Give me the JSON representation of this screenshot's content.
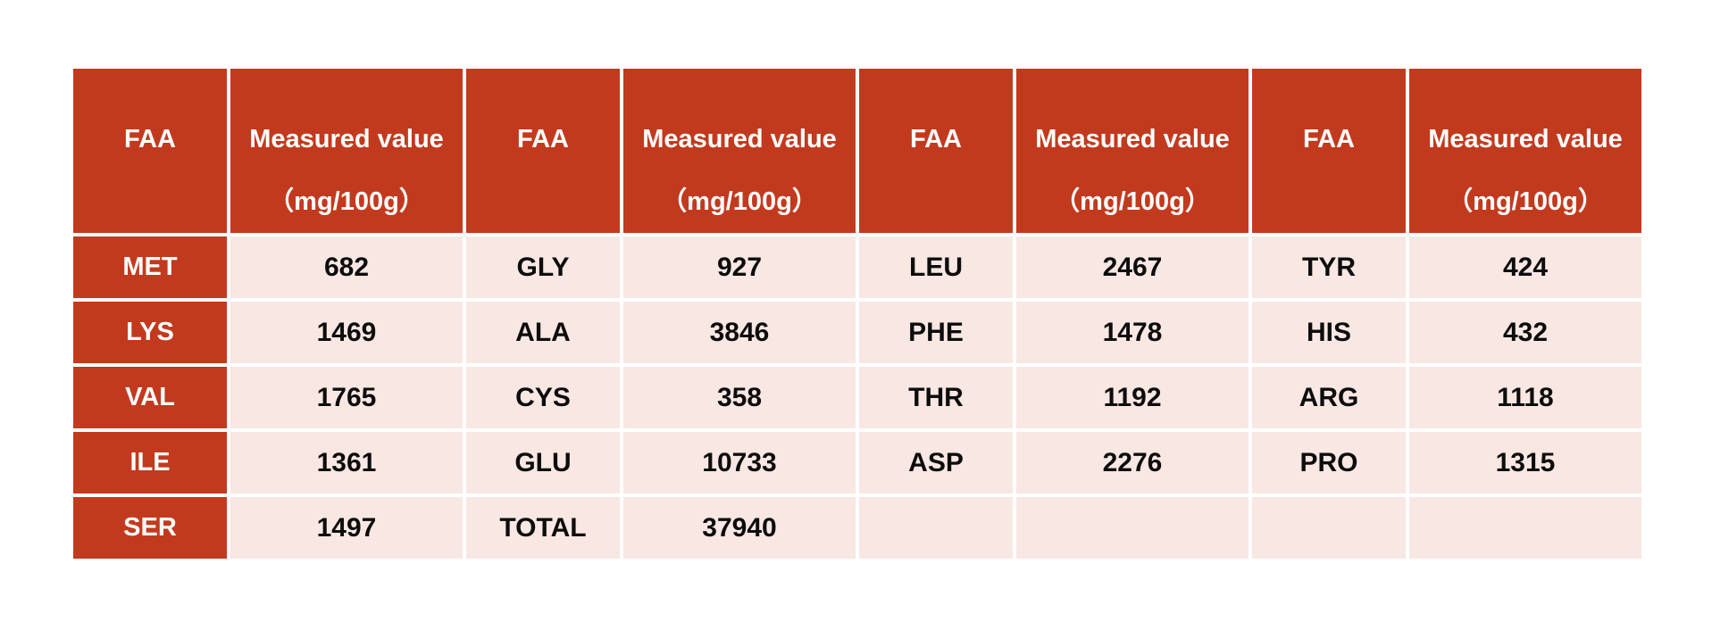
{
  "colors": {
    "header_red": "#C23A1E",
    "cell_pink": "#F8E7E3",
    "header_text": "#FFFFFF",
    "cell_text": "#0D0D0D",
    "page_background": "#FFFFFF"
  },
  "table": {
    "header": {
      "faa_label": "FAA",
      "value_label": "Measured value",
      "unit_label": "（mg/100g）"
    },
    "rows": [
      {
        "cells": [
          "MET",
          "682",
          "GLY",
          "927",
          "LEU",
          "2467",
          "TYR",
          "424"
        ]
      },
      {
        "cells": [
          "LYS",
          "1469",
          "ALA",
          "3846",
          "PHE",
          "1478",
          "HIS",
          "432"
        ]
      },
      {
        "cells": [
          "VAL",
          "1765",
          "CYS",
          "358",
          "THR",
          "1192",
          "ARG",
          "1118"
        ]
      },
      {
        "cells": [
          "ILE",
          "1361",
          "GLU",
          "10733",
          "ASP",
          "2276",
          "PRO",
          "1315"
        ]
      },
      {
        "cells": [
          "SER",
          "1497",
          "TOTAL",
          "37940",
          "",
          "",
          "",
          ""
        ]
      }
    ]
  },
  "chart_data": {
    "type": "table",
    "title": "",
    "columns": [
      "FAA",
      "Measured value（mg/100g）",
      "FAA",
      "Measured value（mg/100g）",
      "FAA",
      "Measured value（mg/100g）",
      "FAA",
      "Measured value（mg/100g）"
    ],
    "unit": "mg/100g",
    "measurements": {
      "MET": 682,
      "LYS": 1469,
      "VAL": 1765,
      "ILE": 1361,
      "SER": 1497,
      "GLY": 927,
      "ALA": 3846,
      "CYS": 358,
      "GLU": 10733,
      "TOTAL": 37940,
      "LEU": 2467,
      "PHE": 1478,
      "THR": 1192,
      "ASP": 2276,
      "TYR": 424,
      "HIS": 432,
      "ARG": 1118,
      "PRO": 1315
    }
  }
}
